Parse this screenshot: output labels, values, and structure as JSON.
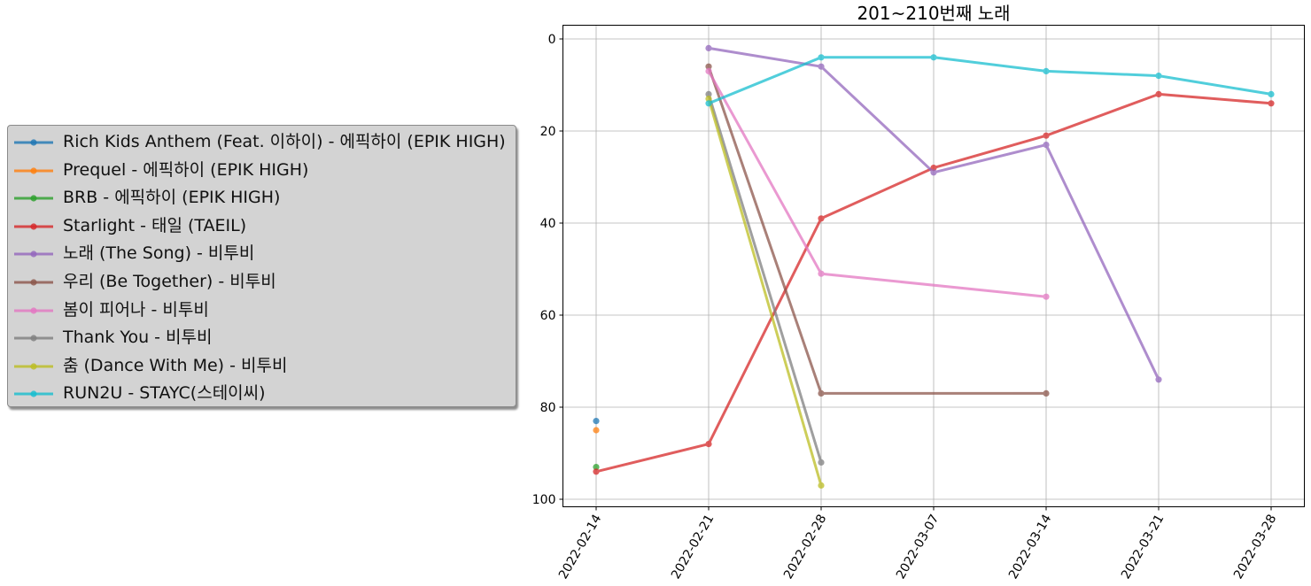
{
  "chart_data": {
    "type": "line",
    "title": "201~210번째 노래",
    "xlabel": "",
    "ylabel": "",
    "x": [
      "2022-02-14",
      "2022-02-21",
      "2022-02-28",
      "2022-03-07",
      "2022-03-14",
      "2022-03-21",
      "2022-03-28"
    ],
    "ylim": [
      102,
      -3
    ],
    "y_inverted": true,
    "yticks": [
      0,
      20,
      40,
      60,
      80,
      100
    ],
    "grid": true,
    "legend_position": "center-left outside",
    "series": [
      {
        "name": "Rich Kids Anthem (Feat. 이하이) - 에픽하이 (EPIK HIGH)",
        "color": "#1f77b4",
        "values": [
          83,
          null,
          null,
          null,
          null,
          null,
          null
        ]
      },
      {
        "name": "Prequel - 에픽하이 (EPIK HIGH)",
        "color": "#ff7f0e",
        "values": [
          85,
          null,
          null,
          null,
          null,
          null,
          null
        ]
      },
      {
        "name": "BRB - 에픽하이 (EPIK HIGH)",
        "color": "#2ca02c",
        "values": [
          93,
          null,
          null,
          null,
          null,
          null,
          null
        ]
      },
      {
        "name": "Starlight - 태일 (TAEIL)",
        "color": "#d62728",
        "values": [
          94,
          88,
          39,
          28,
          21,
          12,
          14
        ]
      },
      {
        "name": "노래 (The Song) - 비투비",
        "color": "#9467bd",
        "values": [
          null,
          2,
          6,
          29,
          23,
          74,
          null
        ]
      },
      {
        "name": "우리 (Be Together) - 비투비",
        "color": "#8c564b",
        "values": [
          null,
          6,
          77,
          null,
          77,
          null,
          null
        ]
      },
      {
        "name": "봄이 피어나 - 비투비",
        "color": "#e377c2",
        "values": [
          null,
          7,
          51,
          null,
          56,
          null,
          null
        ]
      },
      {
        "name": "Thank You - 비투비",
        "color": "#7f7f7f",
        "values": [
          null,
          12,
          92,
          null,
          null,
          null,
          null
        ]
      },
      {
        "name": "춤 (Dance With Me) - 비투비",
        "color": "#bcbd22",
        "values": [
          null,
          13,
          97,
          null,
          null,
          null,
          null
        ]
      },
      {
        "name": "RUN2U - STAYC(스테이씨)",
        "color": "#17becf",
        "values": [
          null,
          14,
          4,
          4,
          7,
          8,
          12
        ]
      }
    ]
  }
}
